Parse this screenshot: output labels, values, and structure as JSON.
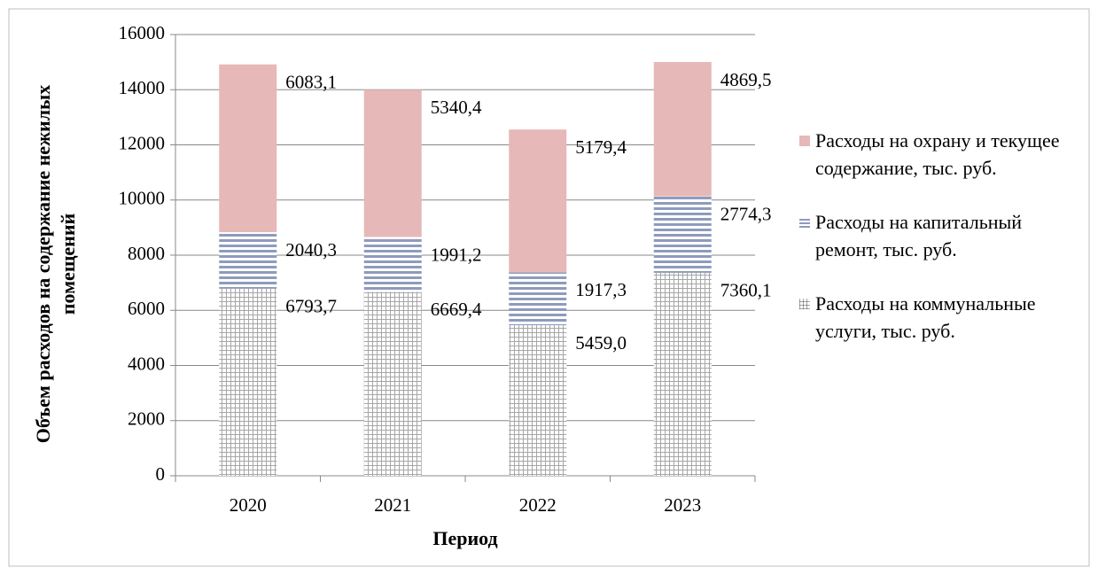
{
  "chart_data": {
    "type": "stacked_bar",
    "xlabel": "Период",
    "ylabel": "Объем расходов на содержание нежилых помещений",
    "categories": [
      "2020",
      "2021",
      "2022",
      "2023"
    ],
    "series": [
      {
        "name": "Расходы на коммунальные услуги, тыс. руб.",
        "color": "#a6a6a6",
        "pattern": "grid",
        "values": [
          6793.7,
          6669.4,
          5459.0,
          7360.1
        ],
        "value_labels": [
          "6793,7",
          "6669,4",
          "5459,0",
          "7360,1"
        ]
      },
      {
        "name": "Расходы на капитальный ремонт, тыс. руб.",
        "color": "#8e9bbd",
        "pattern": "stripes",
        "values": [
          2040.3,
          1991.2,
          1917.3,
          2774.3
        ],
        "value_labels": [
          "2040,3",
          "1991,2",
          "1917,3",
          "2774,3"
        ]
      },
      {
        "name": "Расходы на охрану и текущее содержание, тыс. руб.",
        "color": "#e6b8b7",
        "pattern": "solid",
        "values": [
          6083.1,
          5340.4,
          5179.4,
          4869.5
        ],
        "value_labels": [
          "6083,1",
          "5340,4",
          "5179,4",
          "4869,5"
        ]
      }
    ],
    "ylim": [
      0,
      16000
    ],
    "yticks": [
      0,
      2000,
      4000,
      6000,
      8000,
      10000,
      12000,
      14000,
      16000
    ],
    "grid": true,
    "legend": "right"
  }
}
